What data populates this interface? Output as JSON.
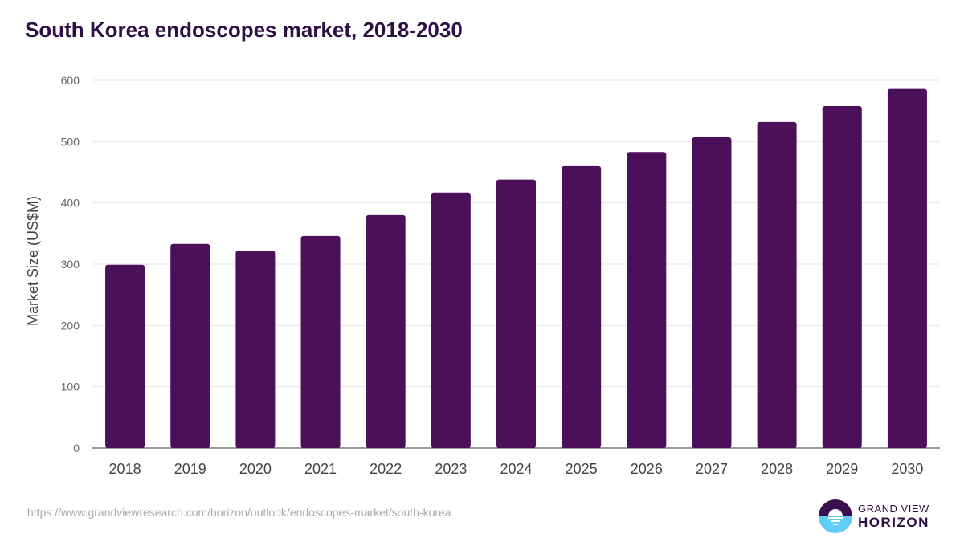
{
  "title": "South Korea endoscopes market, 2018-2030",
  "source": "https://www.grandviewresearch.com/horizon/outlook/endoscopes-market/south-korea",
  "logo": {
    "line1": "GRAND VIEW",
    "line2": "HORIZON"
  },
  "colors": {
    "bar": "#4b1059",
    "title": "#2d0f43",
    "logo_top": "#3a0f4f",
    "logo_bottom": "#5fcdf5"
  },
  "chart_data": {
    "type": "bar",
    "title": "South Korea endoscopes market, 2018-2030",
    "xlabel": "",
    "ylabel": "Market Size (US$M)",
    "ylim": [
      0,
      600
    ],
    "yticks": [
      0,
      100,
      200,
      300,
      400,
      500,
      600
    ],
    "grid": true,
    "categories": [
      "2018",
      "2019",
      "2020",
      "2021",
      "2022",
      "2023",
      "2024",
      "2025",
      "2026",
      "2027",
      "2028",
      "2029",
      "2030"
    ],
    "values": [
      299,
      333,
      322,
      346,
      380,
      417,
      438,
      460,
      483,
      507,
      532,
      558,
      586
    ]
  }
}
